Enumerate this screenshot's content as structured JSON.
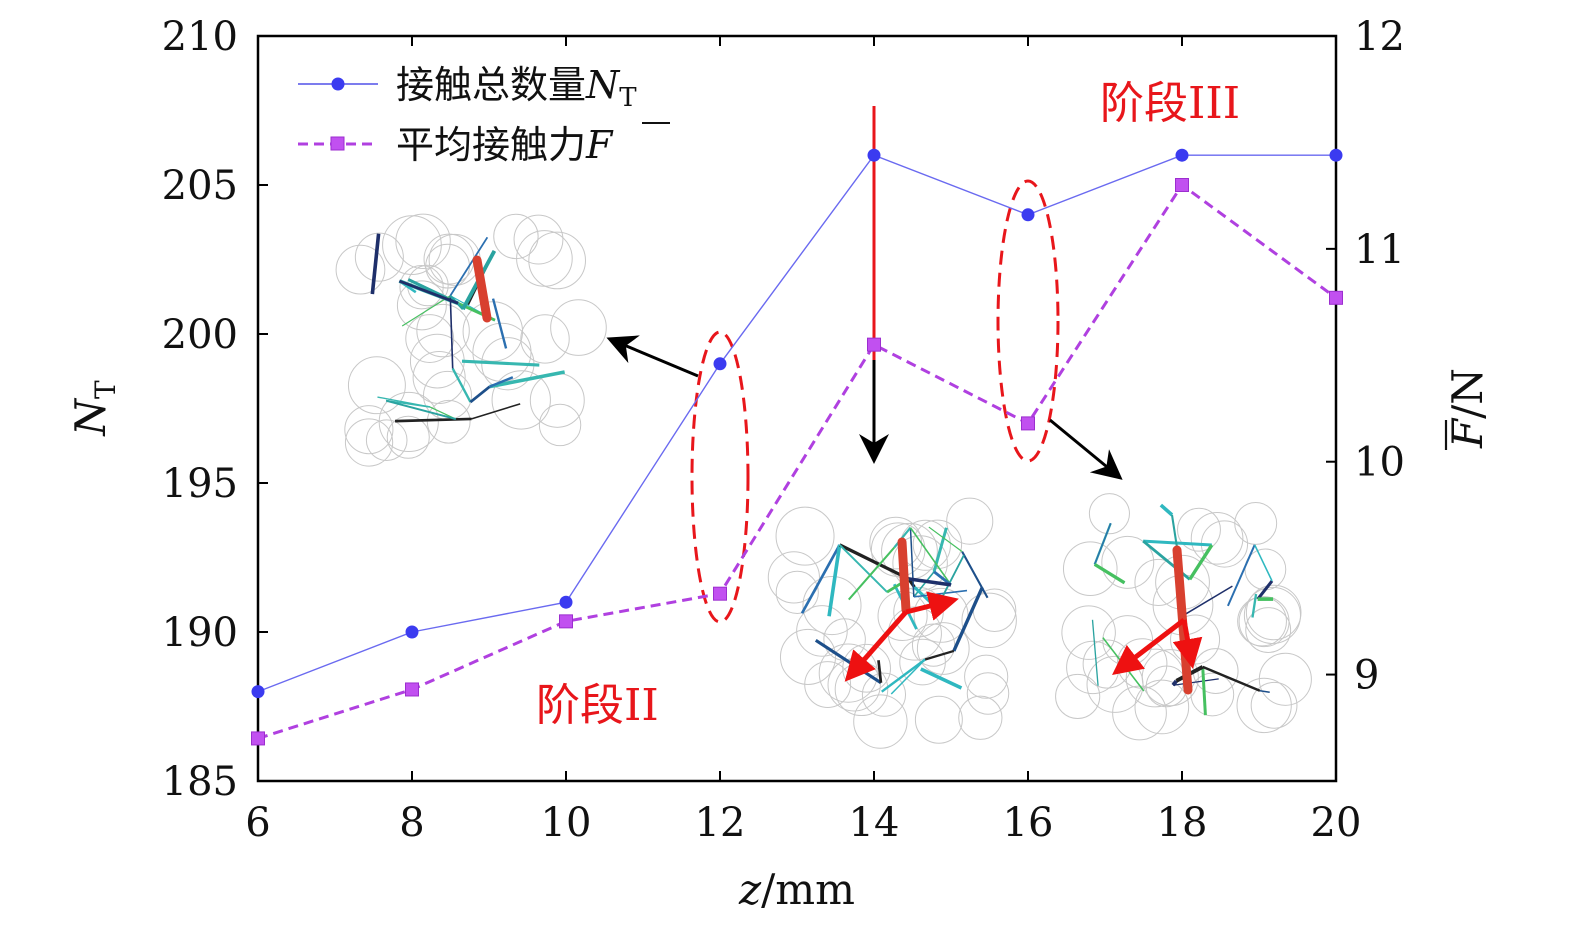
{
  "chart_data": {
    "type": "line",
    "x": [
      6,
      8,
      10,
      12,
      14,
      16,
      18,
      20
    ],
    "xlim": [
      6,
      20
    ],
    "xticks": [
      "6",
      "8",
      "10",
      "12",
      "14",
      "16",
      "18",
      "20"
    ],
    "xlabel": {
      "var": "z",
      "unit": "/mm"
    },
    "y_left": {
      "label_main": "N",
      "label_sub": "T",
      "lim": [
        185,
        210
      ],
      "ticks": [
        "185",
        "190",
        "195",
        "200",
        "205",
        "210"
      ]
    },
    "y_right": {
      "label_main": "F",
      "label_unit": "/N",
      "lim": [
        8.5,
        12
      ],
      "ticks": [
        "9",
        "10",
        "11",
        "12"
      ]
    },
    "series": [
      {
        "name": "接触总数量",
        "name_math": "N",
        "name_sub": "T",
        "axis": "left",
        "color": "#3b3bf0",
        "marker": "circle",
        "line": "solid",
        "values": [
          188,
          190,
          191,
          199,
          206,
          204,
          206,
          206
        ]
      },
      {
        "name": "平均接触力",
        "name_math": "F",
        "axis": "right",
        "color": "#b040e0",
        "marker": "square",
        "line": "dashed",
        "values": [
          8.7,
          8.93,
          9.25,
          9.38,
          10.55,
          10.18,
          11.3,
          10.77
        ]
      }
    ],
    "annotations": [
      {
        "text": "阶段II"
      },
      {
        "text": "阶段III"
      }
    ],
    "grid": false,
    "legend": "top-left"
  }
}
